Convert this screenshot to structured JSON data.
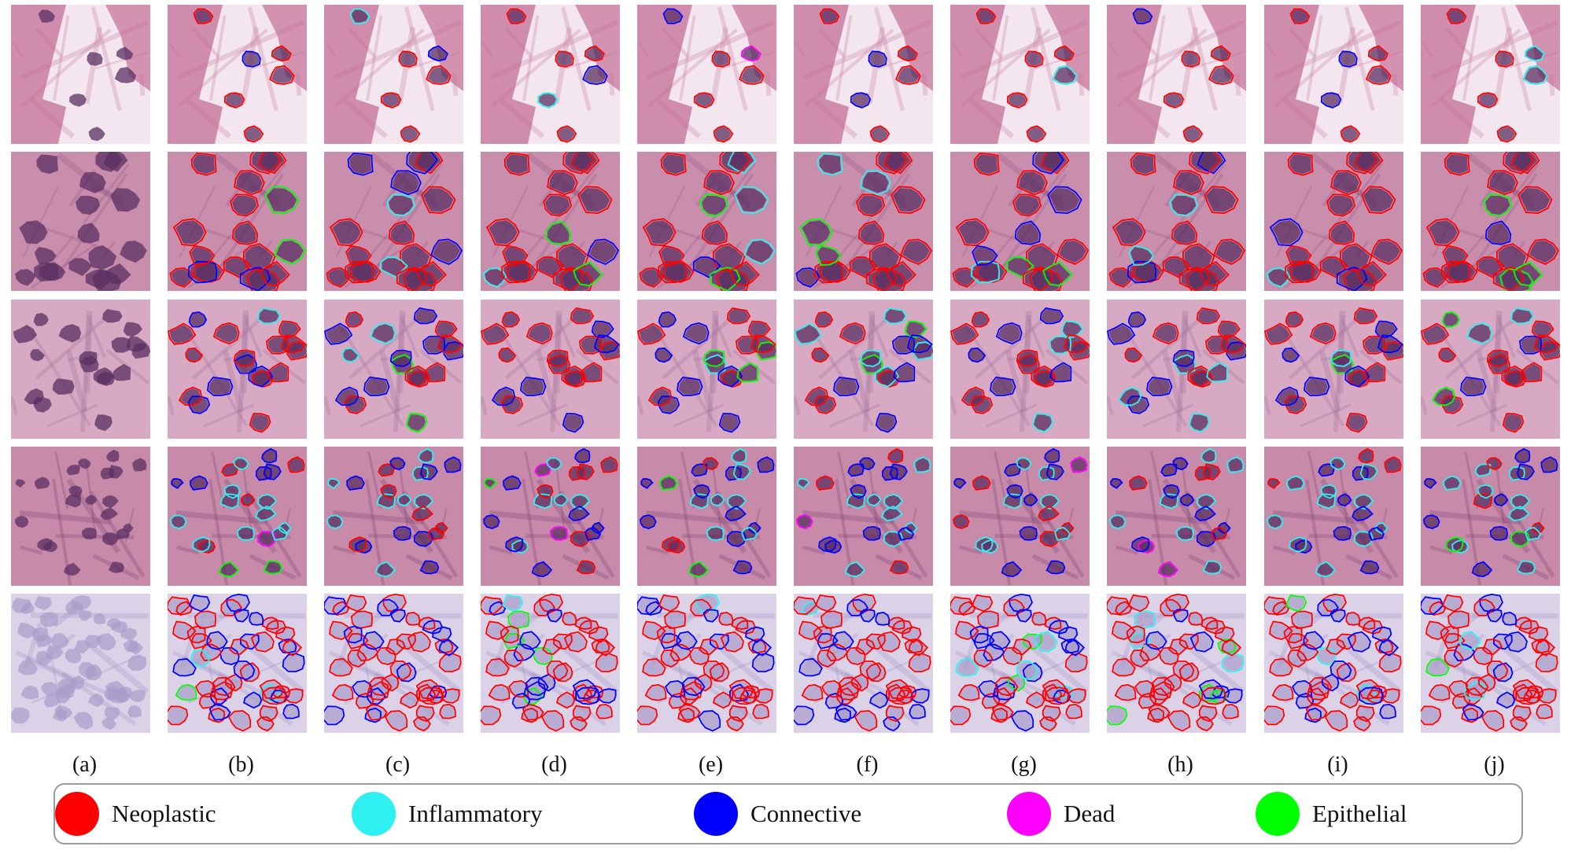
{
  "figure": {
    "column_labels": [
      "(a)",
      "(b)",
      "(c)",
      "(d)",
      "(e)",
      "(f)",
      "(g)",
      "(h)",
      "(i)",
      "(j)"
    ],
    "rows": [
      {
        "tissue": "sparse",
        "bg": "#f3e6ee",
        "tissue_color": "#c36d96"
      },
      {
        "tissue": "dense-nuclei",
        "bg": "#c98eac",
        "tissue_color": "#8a4f7f"
      },
      {
        "tissue": "mixed",
        "bg": "#d8a9c3",
        "tissue_color": "#9c6a96"
      },
      {
        "tissue": "stromal",
        "bg": "#c88aa9",
        "tissue_color": "#6f3a6a"
      },
      {
        "tissue": "crowded-pale",
        "bg": "#dcd2e8",
        "tissue_color": "#9888bd"
      }
    ],
    "legend": [
      {
        "label": "Neoplastic",
        "color": "#ff0000"
      },
      {
        "label": "Inflammatory",
        "color": "#2ff0f0"
      },
      {
        "label": "Connective",
        "color": "#0000ff"
      },
      {
        "label": "Dead",
        "color": "#ff00ff"
      },
      {
        "label": "Epithelial",
        "color": "#00ff00"
      }
    ]
  }
}
